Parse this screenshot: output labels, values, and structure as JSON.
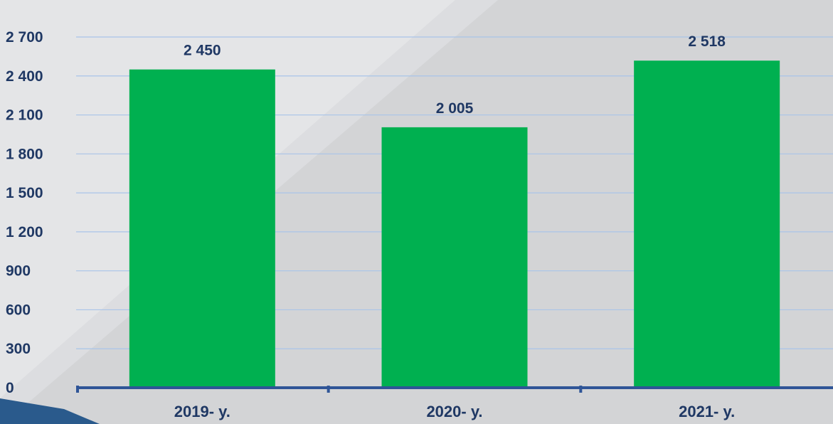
{
  "chart_data": {
    "type": "bar",
    "categories": [
      "2019- y.",
      "2020- y.",
      "2021- y."
    ],
    "values": [
      2450,
      2005,
      2518
    ],
    "value_labels": [
      "2 450",
      "2 005",
      "2 518"
    ],
    "ylim": [
      0,
      2700
    ],
    "yticks": [
      0,
      300,
      600,
      900,
      1200,
      1500,
      1800,
      2100,
      2400,
      2700
    ],
    "ytick_labels": [
      "0",
      "300",
      "600",
      "900",
      "1 200",
      "1 500",
      "1 800",
      "2 100",
      "2 400",
      "2 700"
    ],
    "grid": true,
    "colors": {
      "bar": "#00b050",
      "text": "#1f3864",
      "axis": "#2f5597",
      "grid": "#a9c4e8"
    }
  }
}
